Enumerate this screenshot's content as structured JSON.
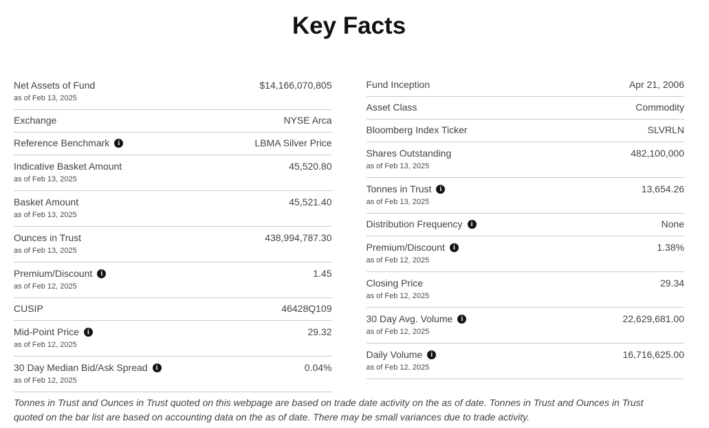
{
  "title": "Key Facts",
  "icons": {
    "info_glyph": "i"
  },
  "colors": {
    "text": "#424242",
    "muted": "#4a4a4a",
    "divider": "#c9c9c9",
    "icon_bg": "#141414",
    "title": "#111111",
    "background": "#ffffff"
  },
  "columns": {
    "left": [
      {
        "label": "Net Assets of Fund",
        "as_of": "as of Feb 13, 2025",
        "value": "$14,166,070,805",
        "info": false
      },
      {
        "label": "Exchange",
        "value": "NYSE Arca",
        "info": false
      },
      {
        "label": "Reference Benchmark",
        "value": "LBMA Silver Price",
        "info": true
      },
      {
        "label": "Indicative Basket Amount",
        "as_of": "as of Feb 13, 2025",
        "value": "45,520.80",
        "info": false
      },
      {
        "label": "Basket Amount",
        "as_of": "as of Feb 13, 2025",
        "value": "45,521.40",
        "info": false
      },
      {
        "label": "Ounces in Trust",
        "as_of": "as of Feb 13, 2025",
        "value": "438,994,787.30",
        "info": false
      },
      {
        "label": "Premium/Discount",
        "as_of": "as of Feb 12, 2025",
        "value": "1.45",
        "info": true
      },
      {
        "label": "CUSIP",
        "value": "46428Q109",
        "info": false
      },
      {
        "label": "Mid-Point Price",
        "as_of": "as of Feb 12, 2025",
        "value": "29.32",
        "info": true
      },
      {
        "label": "30 Day Median Bid/Ask Spread",
        "as_of": "as of Feb 12, 2025",
        "value": "0.04%",
        "info": true
      }
    ],
    "right": [
      {
        "label": "Fund Inception",
        "value": "Apr 21, 2006",
        "info": false
      },
      {
        "label": "Asset Class",
        "value": "Commodity",
        "info": false
      },
      {
        "label": "Bloomberg Index Ticker",
        "value": "SLVRLN",
        "info": false
      },
      {
        "label": "Shares Outstanding",
        "as_of": "as of Feb 13, 2025",
        "value": "482,100,000",
        "info": false
      },
      {
        "label": "Tonnes in Trust",
        "as_of": "as of Feb 13, 2025",
        "value": "13,654.26",
        "info": true
      },
      {
        "label": "Distribution Frequency",
        "value": "None",
        "info": true
      },
      {
        "label": "Premium/Discount",
        "as_of": "as of Feb 12, 2025",
        "value": "1.38%",
        "info": true
      },
      {
        "label": "Closing Price",
        "as_of": "as of Feb 12, 2025",
        "value": "29.34",
        "info": false
      },
      {
        "label": "30 Day Avg. Volume",
        "as_of": "as of Feb 12, 2025",
        "value": "22,629,681.00",
        "info": true
      },
      {
        "label": "Daily Volume",
        "as_of": "as of Feb 12, 2025",
        "value": "16,716,625.00",
        "info": true
      }
    ]
  },
  "footnote": "Tonnes in Trust and Ounces in Trust quoted on this webpage are based on trade date activity on the as of date. Tonnes in Trust and Ounces in Trust quoted on the bar list are based on accounting data on the as of date. There may be small variances due to trade activity."
}
